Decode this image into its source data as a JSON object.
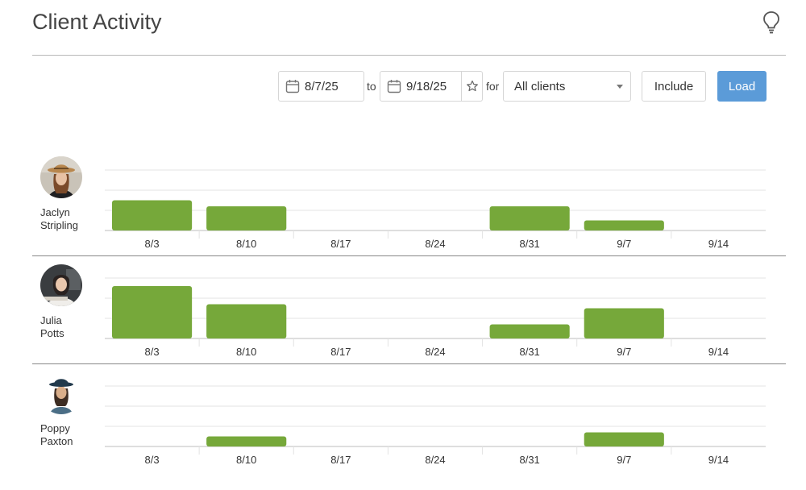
{
  "page": {
    "title": "Client Activity",
    "help_icon": "lightbulb-icon"
  },
  "toolbar": {
    "start_date": "8/7/25",
    "to_label": "to",
    "end_date": "9/18/25",
    "for_label": "for",
    "client_filter": "All clients",
    "include_label": "Include",
    "load_label": "Load"
  },
  "colors": {
    "bar": "#76a83a",
    "accent": "#5b9bd8",
    "grid": "#e3e3e3",
    "axis": "#bdbdbd"
  },
  "chart_data": [
    {
      "type": "bar",
      "client": "Jaclyn Stripling",
      "categories": [
        "8/3",
        "8/10",
        "8/17",
        "8/24",
        "8/31",
        "9/7",
        "9/14"
      ],
      "values": [
        1.5,
        1.2,
        0,
        0,
        1.2,
        0.5,
        0
      ],
      "ylim": [
        0,
        3
      ]
    },
    {
      "type": "bar",
      "client": "Julia Potts",
      "categories": [
        "8/3",
        "8/10",
        "8/17",
        "8/24",
        "8/31",
        "9/7",
        "9/14"
      ],
      "values": [
        2.6,
        1.7,
        0,
        0,
        0.7,
        1.5,
        0
      ],
      "ylim": [
        0,
        3
      ]
    },
    {
      "type": "bar",
      "client": "Poppy Paxton",
      "categories": [
        "8/3",
        "8/10",
        "8/17",
        "8/24",
        "8/31",
        "9/7",
        "9/14"
      ],
      "values": [
        0,
        0.5,
        0,
        0,
        0,
        0.7,
        0
      ],
      "ylim": [
        0,
        3
      ]
    }
  ],
  "clients": [
    {
      "first": "Jaclyn",
      "last": "Stripling",
      "avatar": "avatar-photo-icon"
    },
    {
      "first": "Julia",
      "last": "Potts",
      "avatar": "avatar-photo-icon"
    },
    {
      "first": "Poppy",
      "last": "Paxton",
      "avatar": "avatar-photo-icon"
    }
  ]
}
